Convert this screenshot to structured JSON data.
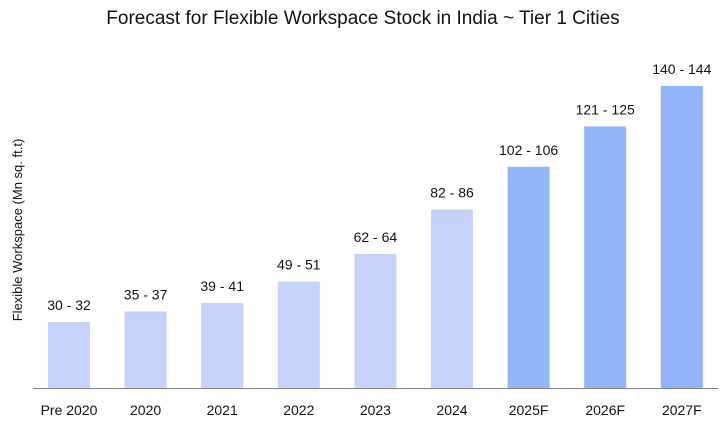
{
  "chart_data": {
    "type": "bar",
    "title": "Forecast for Flexible Workspace Stock in India ~ Tier 1 Cities",
    "xlabel": "",
    "ylabel": "Flexible Workspace (Mn sq. ft.t)",
    "categories": [
      "Pre 2020",
      "2020",
      "2021",
      "2022",
      "2023",
      "2024",
      "2025F",
      "2026F",
      "2027F"
    ],
    "ranges": [
      [
        30,
        32
      ],
      [
        35,
        37
      ],
      [
        39,
        41
      ],
      [
        49,
        51
      ],
      [
        62,
        64
      ],
      [
        82,
        86
      ],
      [
        102,
        106
      ],
      [
        121,
        125
      ],
      [
        140,
        144
      ]
    ],
    "values": [
      31,
      36,
      40,
      50,
      63,
      84,
      104,
      123,
      142
    ],
    "data_labels": [
      "30 - 32",
      "35 - 37",
      "39 - 41",
      "49 - 51",
      "62 - 64",
      "82 - 86",
      "102 - 106",
      "121 - 125",
      "140 - 144"
    ],
    "forecast": [
      false,
      false,
      false,
      false,
      false,
      false,
      true,
      true,
      true
    ],
    "ylim": [
      0,
      142
    ],
    "grid": false,
    "colors": {
      "actual": "#c5d3fb",
      "forecast": "#92b4fb",
      "axis": "#7f7f7f"
    }
  }
}
